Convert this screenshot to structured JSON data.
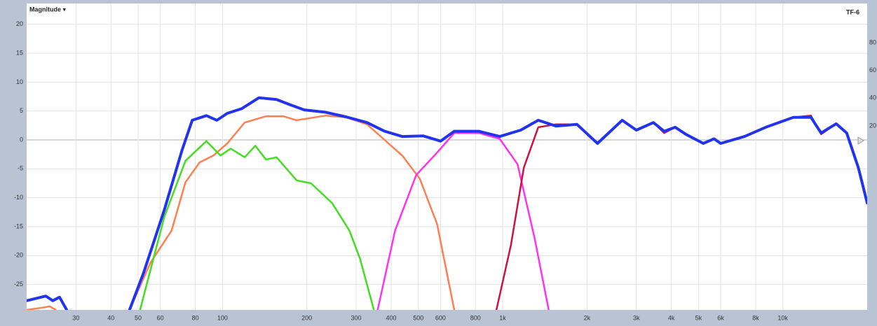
{
  "chart_data": {
    "type": "line",
    "title": "Magnitude ▾",
    "subtitle": "TF-6",
    "xscale": "log",
    "grid": true,
    "xlim": [
      20,
      20000
    ],
    "ylim": [
      -29.4,
      23.6
    ],
    "xticks": [
      30,
      40,
      50,
      60,
      80,
      100,
      200,
      300,
      400,
      500,
      600,
      800,
      {
        "value": 1000,
        "label": "1k"
      },
      {
        "value": 2000,
        "label": "2k"
      },
      {
        "value": 3000,
        "label": "3k"
      },
      {
        "value": 4000,
        "label": "4k"
      },
      {
        "value": 5000,
        "label": "5k"
      },
      {
        "value": 6000,
        "label": "6k"
      },
      {
        "value": 8000,
        "label": "8k"
      },
      {
        "value": 10000,
        "label": "10k"
      }
    ],
    "yticks": [
      -25,
      -20,
      -15,
      -10,
      -5,
      0,
      5,
      10,
      15,
      20
    ],
    "y2lim": [
      -112.6,
      108.2
    ],
    "y2ticks": [
      20,
      40,
      60,
      80
    ],
    "series": [
      {
        "name": "orange",
        "color": "#ff7f50",
        "x": [
          20,
          22.8,
          24.2,
          25.4,
          30,
          46.6,
          55.4,
          65.8,
          73.8,
          82.8,
          92.8,
          104,
          120,
          143,
          165,
          184,
          233,
          276,
          328,
          379,
          438,
          506,
          583,
          672
        ],
        "values": [
          -29.4,
          -29,
          -28.8,
          -29.4,
          null,
          -29.4,
          -21.2,
          -15.7,
          -7.3,
          -3.9,
          -2.7,
          -0.6,
          3,
          4.1,
          4.1,
          3.4,
          4.2,
          3.9,
          2.7,
          0,
          -2.7,
          -6.7,
          -14.5,
          -29.4
        ]
      },
      {
        "name": "green",
        "color": "#44dd22",
        "x": [
          50.8,
          62,
          73.8,
          87.6,
          98.3,
          107,
          120,
          131,
          143,
          156,
          184,
          207,
          246,
          284,
          310,
          347
        ],
        "values": [
          -29.4,
          -13.3,
          -3.6,
          -0.2,
          -2.7,
          -1.5,
          -3,
          -1,
          -3.4,
          -3,
          -7,
          -7.5,
          -10.9,
          -15.7,
          -20.6,
          -29.4
        ]
      },
      {
        "name": "magenta",
        "color": "#ff33ee",
        "x": [
          358,
          413,
          491,
          583,
          672,
          821,
          976,
          1130,
          1300,
          1460
        ],
        "values": [
          -29.4,
          -15.7,
          -6.1,
          -2.2,
          1.2,
          1.2,
          0.2,
          -4.2,
          -17,
          -29.4
        ]
      },
      {
        "name": "dark-red",
        "color": "#cc1144",
        "x": [
          950,
          1070,
          1190,
          1340,
          1550,
          1840,
          2180,
          2670,
          3000,
          3450,
          3770,
          4130,
          4500,
          5200,
          5680,
          6000,
          7300,
          8690,
          10900,
          12600,
          13700,
          15500,
          16900,
          18600,
          20000
        ],
        "values": [
          -29.4,
          -18.2,
          -4.8,
          2.2,
          2.7,
          2.7,
          -0.6,
          3.4,
          1.7,
          3,
          1.2,
          2.2,
          1,
          -0.6,
          0.2,
          -0.6,
          0.6,
          2.2,
          3.9,
          4.2,
          1,
          2.8,
          1.2,
          -4.8,
          -10.9
        ]
      },
      {
        "name": "blue",
        "color": "#2233ee",
        "x": [
          20,
          23.4,
          24.8,
          26.2,
          27.8,
          30,
          46.6,
          52.3,
          62,
          71.7,
          78,
          87.6,
          95.5,
          104,
          117,
          135,
          156,
          174,
          196,
          233,
          276,
          328,
          379,
          438,
          520,
          600,
          672,
          821,
          976,
          1160,
          1340,
          1550,
          1840,
          2180,
          2670,
          3000,
          3450,
          3770,
          4130,
          4500,
          5200,
          5680,
          6000,
          7300,
          8690,
          10900,
          12600,
          13700,
          15500,
          16900,
          18600,
          20000
        ],
        "values": [
          -27.8,
          -27,
          -27.8,
          -27.2,
          -29.4,
          null,
          -29.4,
          -23,
          -12.1,
          -1.8,
          3.4,
          4.2,
          3.4,
          4.6,
          5.4,
          7.3,
          7,
          6.1,
          5.2,
          4.8,
          4,
          3,
          1.5,
          0.6,
          0.7,
          -0.2,
          1.5,
          1.5,
          0.6,
          1.7,
          3.4,
          2.4,
          2.7,
          -0.6,
          3.4,
          1.7,
          3,
          1.5,
          2.2,
          1,
          -0.6,
          0.2,
          -0.6,
          0.6,
          2.2,
          3.9,
          3.9,
          1.2,
          2.8,
          1.2,
          -4.8,
          -10.9
        ]
      }
    ]
  }
}
